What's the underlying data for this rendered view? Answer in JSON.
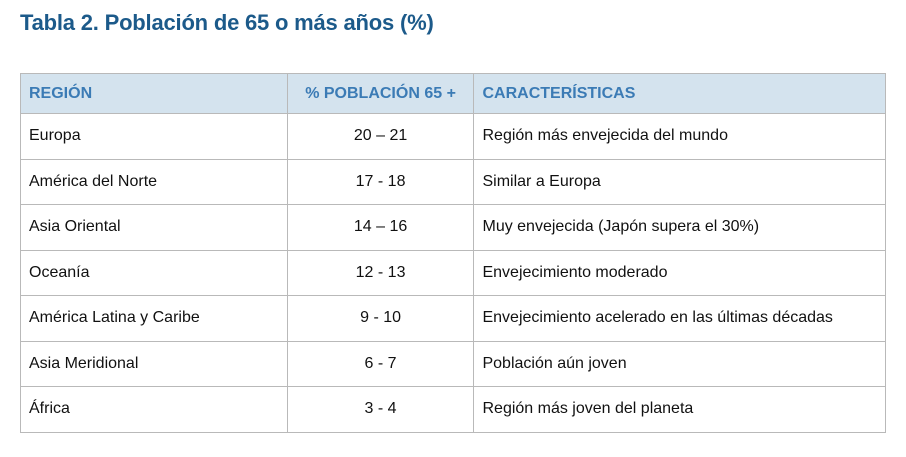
{
  "title": "Tabla 2. Población de 65 o más años (%)",
  "table": {
    "header": [
      "REGIÓN",
      "% POBLACIÓN 65 +",
      "CARACTERÍSTICAS"
    ],
    "rows": [
      [
        "Europa",
        "20 – 21",
        "Región más envejecida del mundo"
      ],
      [
        "América del Norte",
        "17 - 18",
        "Similar a Europa"
      ],
      [
        "Asia Oriental",
        "14 – 16",
        "Muy envejecida (Japón supera el 30%)"
      ],
      [
        "Oceanía",
        "12 - 13",
        "Envejecimiento moderado"
      ],
      [
        "América Latina y Caribe",
        "9 - 10",
        "Envejecimiento acelerado en las últimas décadas"
      ],
      [
        "Asia Meridional",
        "6 - 7",
        "Población aún joven"
      ],
      [
        "África",
        "3 - 4",
        "Región más joven del planeta"
      ]
    ]
  }
}
